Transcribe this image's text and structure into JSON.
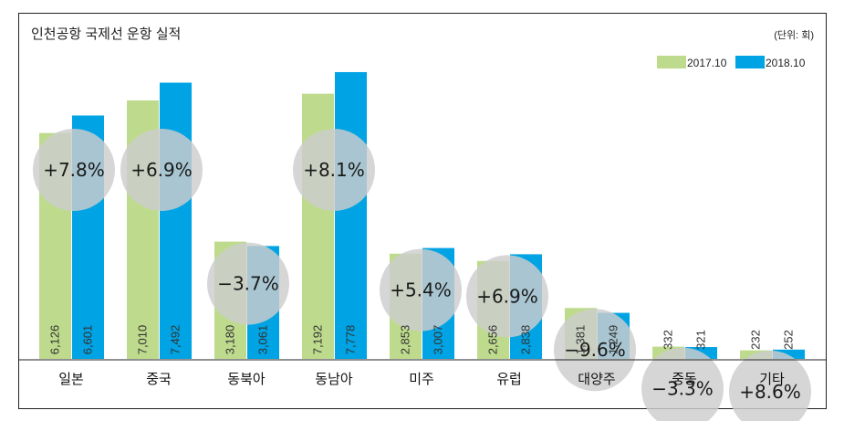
{
  "chart_data": {
    "type": "bar",
    "title": "인천공항 국제선 운항 실적",
    "unit_note": "(단위: 회)",
    "legend_position": "top-right",
    "grid": false,
    "categories": [
      "일본",
      "중국",
      "동북아",
      "동남아",
      "미주",
      "유럽",
      "대양주",
      "중동",
      "기타"
    ],
    "series": [
      {
        "name": "2017.10",
        "color": "#bedb8d",
        "values": [
          6126,
          7010,
          3180,
          7192,
          2853,
          2656,
          1381,
          332,
          232
        ],
        "labels": [
          "6,126",
          "7,010",
          "3,180",
          "7,192",
          "2,853",
          "2,656",
          "1,381",
          "332",
          "232"
        ]
      },
      {
        "name": "2018.10",
        "color": "#00a3e3",
        "values": [
          6601,
          7492,
          3061,
          7778,
          3007,
          2838,
          1249,
          321,
          252
        ],
        "labels": [
          "6,601",
          "7,492",
          "3,061",
          "7,778",
          "3,007",
          "2,838",
          "1,249",
          "321",
          "252"
        ]
      }
    ],
    "changes": [
      "+7.8%",
      "+6.9%",
      "−3.7%",
      "+8.1%",
      "+5.4%",
      "+6.9%",
      "−9.6%",
      "−3.3%",
      "+8.6%"
    ],
    "ylim": [
      0,
      8000
    ]
  }
}
